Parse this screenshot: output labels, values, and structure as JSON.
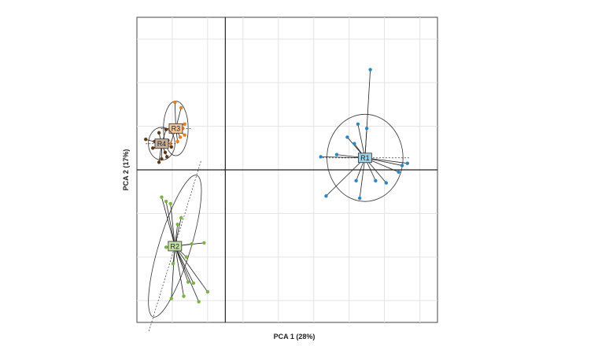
{
  "chart_data": {
    "type": "scatter",
    "title": "",
    "xlabel": "PCA 1 (28%)",
    "ylabel": "PCA 2 (17%)",
    "xlim": [
      -5,
      12
    ],
    "ylim": [
      -7,
      7
    ],
    "grid": true,
    "gridlines_x": [
      -3,
      -1,
      1,
      3,
      5,
      7,
      9,
      11
    ],
    "gridlines_y": [
      -6,
      -4,
      -2,
      0,
      2,
      4,
      6
    ],
    "zero_lines": true,
    "groups": [
      {
        "label": "R1",
        "color": "#2e86c1",
        "label_fill": "#9fd0e6",
        "centroid": [
          7.9,
          0.55
        ],
        "ellipse": {
          "rx": 2.15,
          "ry": 2.0,
          "angle": 0
        },
        "points": [
          [
            8.2,
            4.6
          ],
          [
            7.5,
            2.1
          ],
          [
            8.0,
            1.9
          ],
          [
            6.9,
            1.5
          ],
          [
            7.3,
            1.2
          ],
          [
            6.3,
            0.7
          ],
          [
            5.4,
            0.6
          ],
          [
            10.3,
            0.3
          ],
          [
            10.0,
            0.2
          ],
          [
            9.8,
            -0.1
          ],
          [
            7.4,
            -0.5
          ],
          [
            8.5,
            -0.5
          ],
          [
            9.1,
            -0.6
          ],
          [
            7.6,
            -1.3
          ],
          [
            5.7,
            -1.2
          ]
        ]
      },
      {
        "label": "R2",
        "color": "#7cb342",
        "label_fill": "#c5e1a5",
        "centroid": [
          -2.85,
          -3.5
        ],
        "ellipse": {
          "rx": 3.4,
          "ry": 0.9,
          "angle": -73
        },
        "points": [
          [
            -3.6,
            -1.25
          ],
          [
            -3.35,
            -1.45
          ],
          [
            -3.1,
            -1.55
          ],
          [
            -2.5,
            -2.2
          ],
          [
            -2.7,
            -2.5
          ],
          [
            -1.2,
            -3.35
          ],
          [
            -1.9,
            -3.4
          ],
          [
            -3.35,
            -3.55
          ],
          [
            -2.2,
            -4.0
          ],
          [
            -2.95,
            -4.3
          ],
          [
            -2.1,
            -5.15
          ],
          [
            -1.8,
            -5.2
          ],
          [
            -3.05,
            -5.9
          ],
          [
            -2.35,
            -5.8
          ],
          [
            -1.0,
            -5.6
          ],
          [
            -1.5,
            -6.05
          ]
        ]
      },
      {
        "label": "R3",
        "color": "#e67e22",
        "label_fill": "#f5c69a",
        "centroid": [
          -2.8,
          1.9
        ],
        "ellipse": {
          "rx": 0.7,
          "ry": 1.25,
          "angle": 0
        },
        "points": [
          [
            -2.85,
            3.1
          ],
          [
            -2.5,
            2.85
          ],
          [
            -2.3,
            2.1
          ],
          [
            -2.4,
            1.9
          ],
          [
            -2.55,
            1.5
          ],
          [
            -2.3,
            1.6
          ],
          [
            -2.7,
            1.3
          ],
          [
            -3.1,
            1.2
          ]
        ]
      },
      {
        "label": "R4",
        "color": "#5d3a1a",
        "label_fill": "#c8b09a",
        "centroid": [
          -3.6,
          1.2
        ],
        "ellipse": {
          "rx": 0.75,
          "ry": 0.75,
          "angle": 0
        },
        "points": [
          [
            -4.5,
            1.4
          ],
          [
            -4.1,
            1.0
          ],
          [
            -3.75,
            1.7
          ],
          [
            -3.35,
            1.85
          ],
          [
            -3.25,
            1.35
          ],
          [
            -3.05,
            1.05
          ],
          [
            -3.3,
            0.6
          ],
          [
            -3.6,
            0.5
          ],
          [
            -3.75,
            0.35
          ],
          [
            -3.4,
            0.8
          ],
          [
            -4.0,
            1.3
          ]
        ]
      }
    ]
  }
}
